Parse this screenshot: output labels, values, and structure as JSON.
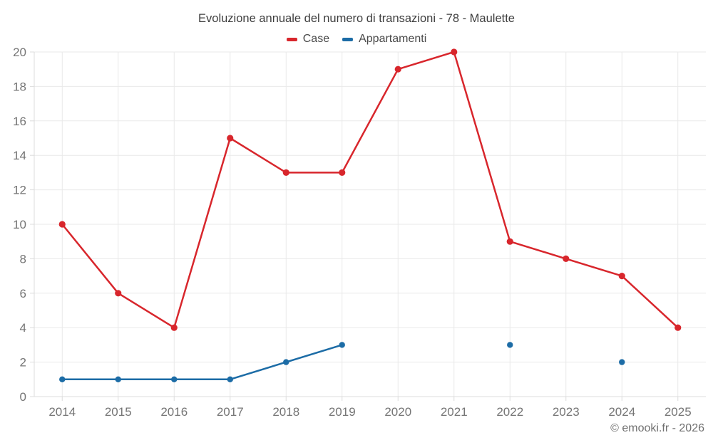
{
  "chart_data": {
    "type": "line",
    "title": "Evoluzione annuale del numero di transazioni - 78 - Maulette",
    "categories": [
      "2014",
      "2015",
      "2016",
      "2017",
      "2018",
      "2019",
      "2020",
      "2021",
      "2022",
      "2023",
      "2024",
      "2025"
    ],
    "series": [
      {
        "name": "Case",
        "color": "#d8262c",
        "marker_radius": 4.6,
        "values": [
          10,
          6,
          4,
          15,
          13,
          13,
          19,
          20,
          9,
          8,
          7,
          4
        ]
      },
      {
        "name": "Appartamenti",
        "color": "#1c6ca6",
        "marker_radius": 4.2,
        "values": [
          1,
          1,
          1,
          1,
          2,
          3,
          null,
          null,
          3,
          null,
          2,
          null
        ]
      }
    ],
    "xlabel": "",
    "ylabel": "",
    "ylim": [
      0,
      20
    ],
    "ytick_step": 2,
    "grid": true,
    "legend_position": "top"
  },
  "palette": {
    "grid": "#e9e9e9",
    "axis": "#dcdcdc",
    "tick_text": "#757575",
    "title_text": "#3e3e3e",
    "legend_text": "#4a4a4a",
    "background": "#ffffff"
  },
  "footer": {
    "copyright": "© emooki.fr - 2026"
  }
}
